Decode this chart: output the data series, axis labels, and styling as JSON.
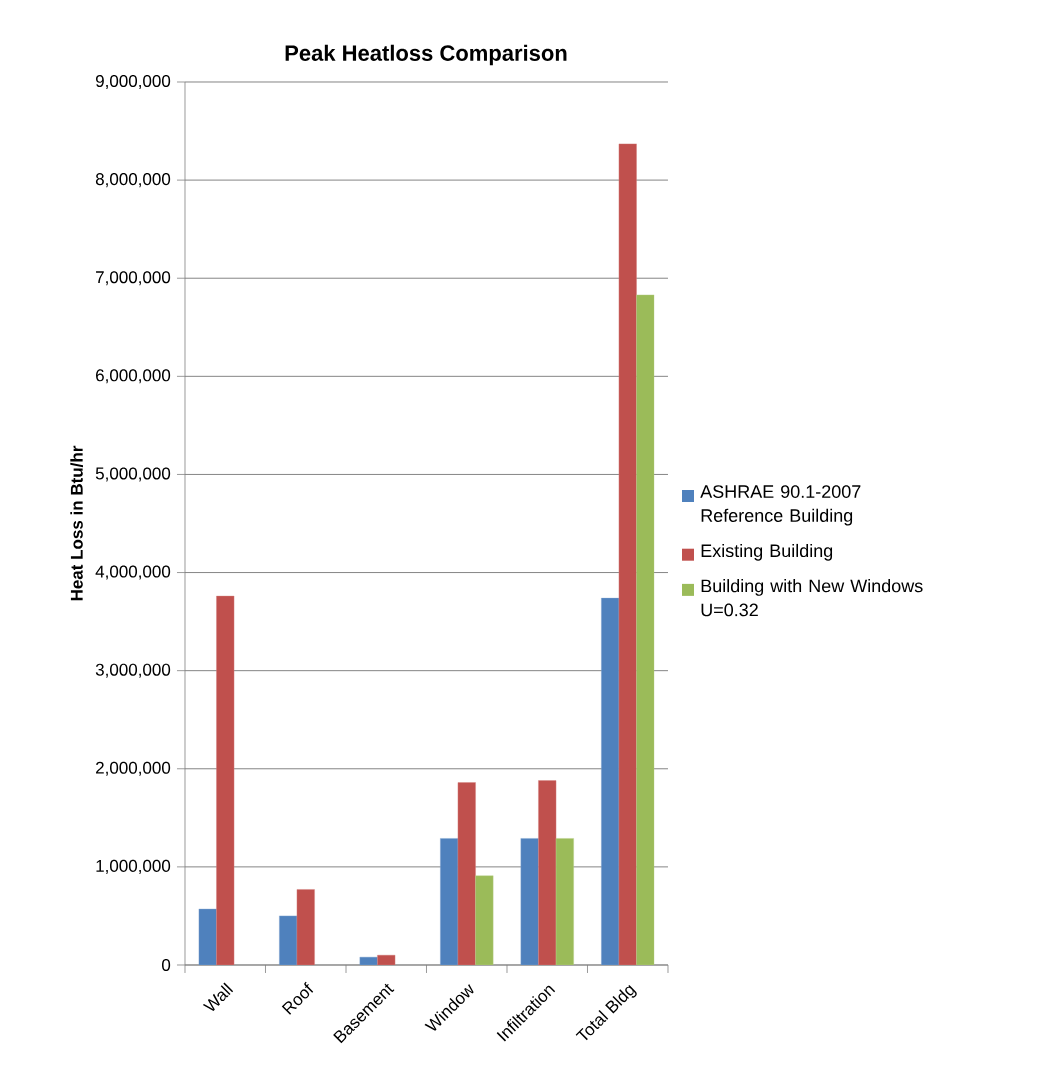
{
  "chart_data": {
    "type": "bar",
    "title": "Peak Heatloss Comparison",
    "ylabel": "Heat Loss in Btu/hr",
    "categories": [
      "Wall",
      "Roof",
      "Basement",
      "Window",
      "Infiltration",
      "Total Bldg"
    ],
    "series": [
      {
        "name": "ASHRAE 90.1-2007 Reference Building",
        "color": "#4f81bd",
        "values": [
          570000,
          500000,
          80000,
          1290000,
          1290000,
          3740000
        ]
      },
      {
        "name": "Existing Building",
        "color": "#c0504d",
        "values": [
          3760000,
          770000,
          100000,
          1860000,
          1880000,
          8370000
        ]
      },
      {
        "name": "Building with New Windows U=0.32",
        "color": "#9bbb59",
        "values": [
          null,
          null,
          null,
          910000,
          1290000,
          6830000
        ]
      }
    ],
    "ylim": [
      0,
      9000000
    ],
    "yticks": [
      {
        "value": 0,
        "label": "0"
      },
      {
        "value": 1000000,
        "label": "1,000,000"
      },
      {
        "value": 2000000,
        "label": "2,000,000"
      },
      {
        "value": 3000000,
        "label": "3,000,000"
      },
      {
        "value": 4000000,
        "label": "4,000,000"
      },
      {
        "value": 5000000,
        "label": "5,000,000"
      },
      {
        "value": 6000000,
        "label": "6,000,000"
      },
      {
        "value": 7000000,
        "label": "7,000,000"
      },
      {
        "value": 8000000,
        "label": "8,000,000"
      },
      {
        "value": 9000000,
        "label": "9,000,000"
      }
    ],
    "grid": "y",
    "legend": "right"
  }
}
